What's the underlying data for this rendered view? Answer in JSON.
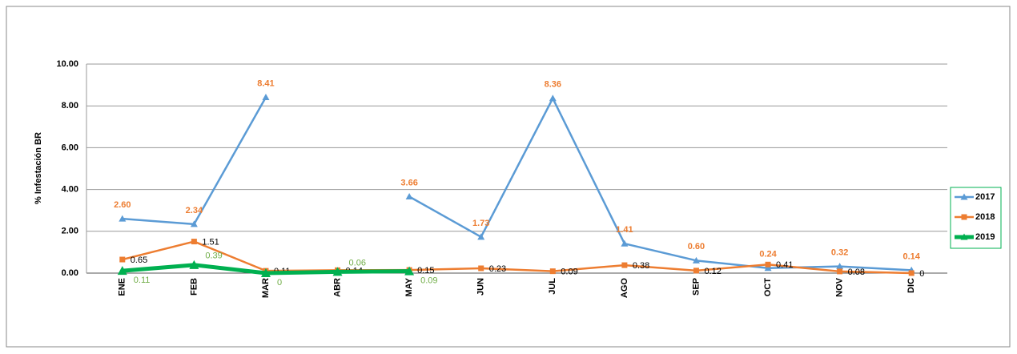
{
  "chart_data": {
    "type": "line",
    "y_label": "% Infestación BR",
    "categories": [
      "ENE",
      "FEB",
      "MAR",
      "ABR",
      "MAY",
      "JUN",
      "JUL",
      "AGO",
      "SEP",
      "OCT",
      "NOV",
      "DIC"
    ],
    "ylim": [
      0,
      10
    ],
    "yticks": [
      {
        "value": 0,
        "label": "0.00"
      },
      {
        "value": 2,
        "label": "2.00"
      },
      {
        "value": 4,
        "label": "4.00"
      },
      {
        "value": 6,
        "label": "6.00"
      },
      {
        "value": 8,
        "label": "8.00"
      },
      {
        "value": 10,
        "label": "10.00"
      }
    ],
    "grid": true,
    "legend": "right",
    "series": [
      {
        "name": "2017",
        "color": "#5B9BD5",
        "marker": "triangle",
        "label_color": "#ED7D31",
        "values": [
          2.6,
          2.34,
          8.41,
          null,
          3.66,
          1.73,
          8.36,
          1.41,
          0.6,
          0.24,
          0.32,
          0.14
        ],
        "value_labels": [
          "2.60",
          "2.34",
          "8.41",
          null,
          "3.66",
          "1.73",
          "8.36",
          "1.41",
          "0.60",
          "0.24",
          "0.32",
          "0.14"
        ]
      },
      {
        "name": "2018",
        "color": "#ED7D31",
        "marker": "square",
        "label_color": "#000000",
        "values": [
          0.65,
          1.51,
          0.11,
          0.14,
          0.15,
          0.23,
          0.09,
          0.38,
          0.12,
          0.41,
          0.08,
          0
        ]
      },
      {
        "name": "2019",
        "color": "#00B050",
        "marker": "triangle",
        "label_color": "#70AD47",
        "values": [
          0.11,
          0.39,
          0,
          0.06,
          0.09,
          null,
          null,
          null,
          null,
          null,
          null,
          null
        ]
      }
    ]
  }
}
